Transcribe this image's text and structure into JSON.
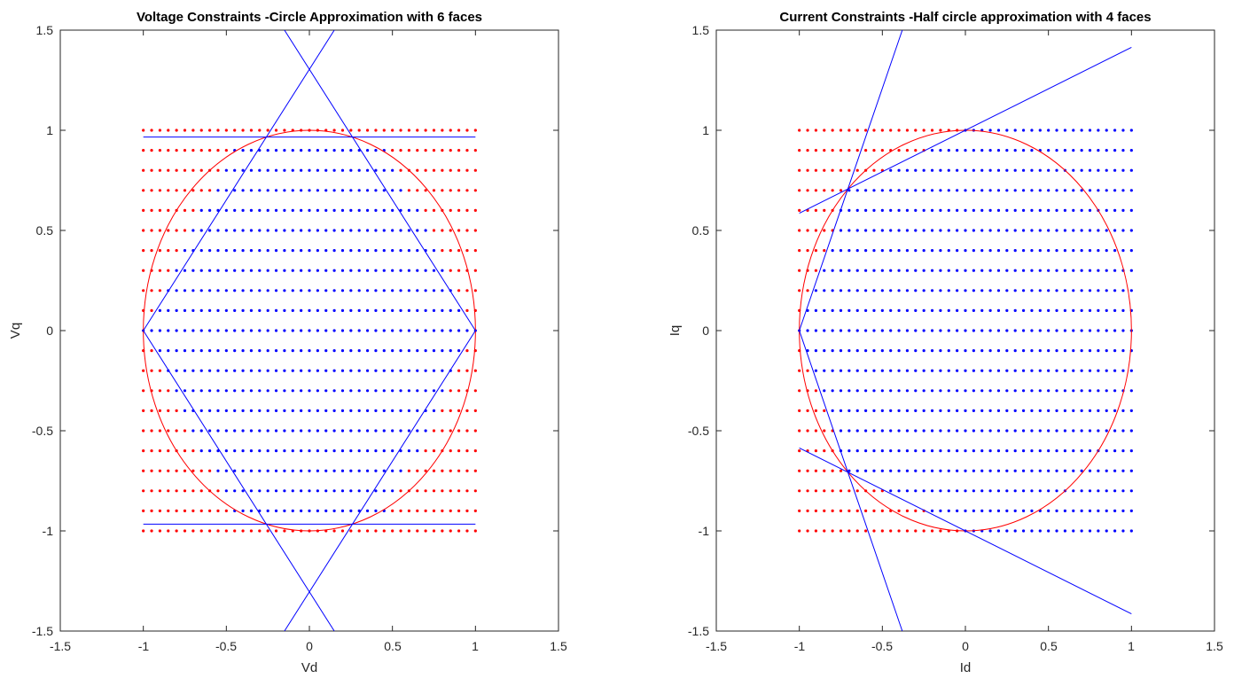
{
  "chart_data": [
    {
      "type": "scatter",
      "title": "Voltage Constraints -Circle Approximation with 6 faces",
      "xlabel": "Vd",
      "ylabel": "Vq",
      "xlim": [
        -1.5,
        1.5
      ],
      "ylim": [
        -1.5,
        1.5
      ],
      "xticks": [
        "-1.5",
        "-1",
        "-0.5",
        "0",
        "0.5",
        "1",
        "1.5"
      ],
      "yticks": [
        "-1.5",
        "-1",
        "-0.5",
        "0",
        "0.5",
        "1",
        "1.5"
      ],
      "grid": false,
      "grid_points": {
        "x_range": [
          -1,
          1
        ],
        "x_step": 0.05,
        "y_range": [
          -1,
          1
        ],
        "y_step": 0.1,
        "inside_color": "#0000ff",
        "outside_color": "#ff0000",
        "rule": "inside the hexagon and |Vq| <= 0.96 shown blue; all other points shown red"
      },
      "circle": {
        "center": [
          0,
          0
        ],
        "radius": 1,
        "color": "#ff0000"
      },
      "lines": [
        {
          "points": [
            [
              -1.0,
              0.0
            ],
            [
              0.15,
              1.5
            ]
          ],
          "color": "#0000ff"
        },
        {
          "points": [
            [
              1.0,
              0.0
            ],
            [
              -0.15,
              1.5
            ]
          ],
          "color": "#0000ff"
        },
        {
          "points": [
            [
              -1.0,
              0.0
            ],
            [
              0.15,
              -1.5
            ]
          ],
          "color": "#0000ff"
        },
        {
          "points": [
            [
              1.0,
              0.0
            ],
            [
              -0.15,
              -1.5
            ]
          ],
          "color": "#0000ff"
        },
        {
          "points": [
            [
              -1.0,
              0.966
            ],
            [
              1.0,
              0.966
            ]
          ],
          "color": "#0000ff"
        },
        {
          "points": [
            [
              -1.0,
              -0.966
            ],
            [
              1.0,
              -0.966
            ]
          ],
          "color": "#0000ff"
        }
      ]
    },
    {
      "type": "scatter",
      "title": "Current Constraints -Half circle approximation with 4 faces",
      "xlabel": "Id",
      "ylabel": "Iq",
      "xlim": [
        -1.5,
        1.5
      ],
      "ylim": [
        -1.5,
        1.5
      ],
      "xticks": [
        "-1.5",
        "-1",
        "-0.5",
        "0",
        "0.5",
        "1",
        "1.5"
      ],
      "yticks": [
        "-1.5",
        "-1",
        "-0.5",
        "0",
        "0.5",
        "1",
        "1.5"
      ],
      "grid": false,
      "grid_points": {
        "x_range": [
          -1,
          1
        ],
        "x_step": 0.05,
        "y_range": [
          -1,
          1
        ],
        "y_step": 0.1,
        "inside_color": "#0000ff",
        "outside_color": "#ff0000",
        "rule": "points on the right side of the four faces shown blue; others red"
      },
      "circle": {
        "center": [
          0,
          0
        ],
        "radius": 1,
        "color": "#ff0000"
      },
      "lines": [
        {
          "points": [
            [
              -1.0,
              0.0
            ],
            [
              -0.38,
              1.5
            ]
          ],
          "color": "#0000ff"
        },
        {
          "points": [
            [
              -1.0,
              0.0
            ],
            [
              -0.38,
              -1.5
            ]
          ],
          "color": "#0000ff"
        },
        {
          "points": [
            [
              -1.0,
              0.586
            ],
            [
              1.0,
              1.414
            ]
          ],
          "color": "#0000ff"
        },
        {
          "points": [
            [
              -1.0,
              -0.586
            ],
            [
              1.0,
              -1.414
            ]
          ],
          "color": "#0000ff"
        }
      ]
    }
  ]
}
